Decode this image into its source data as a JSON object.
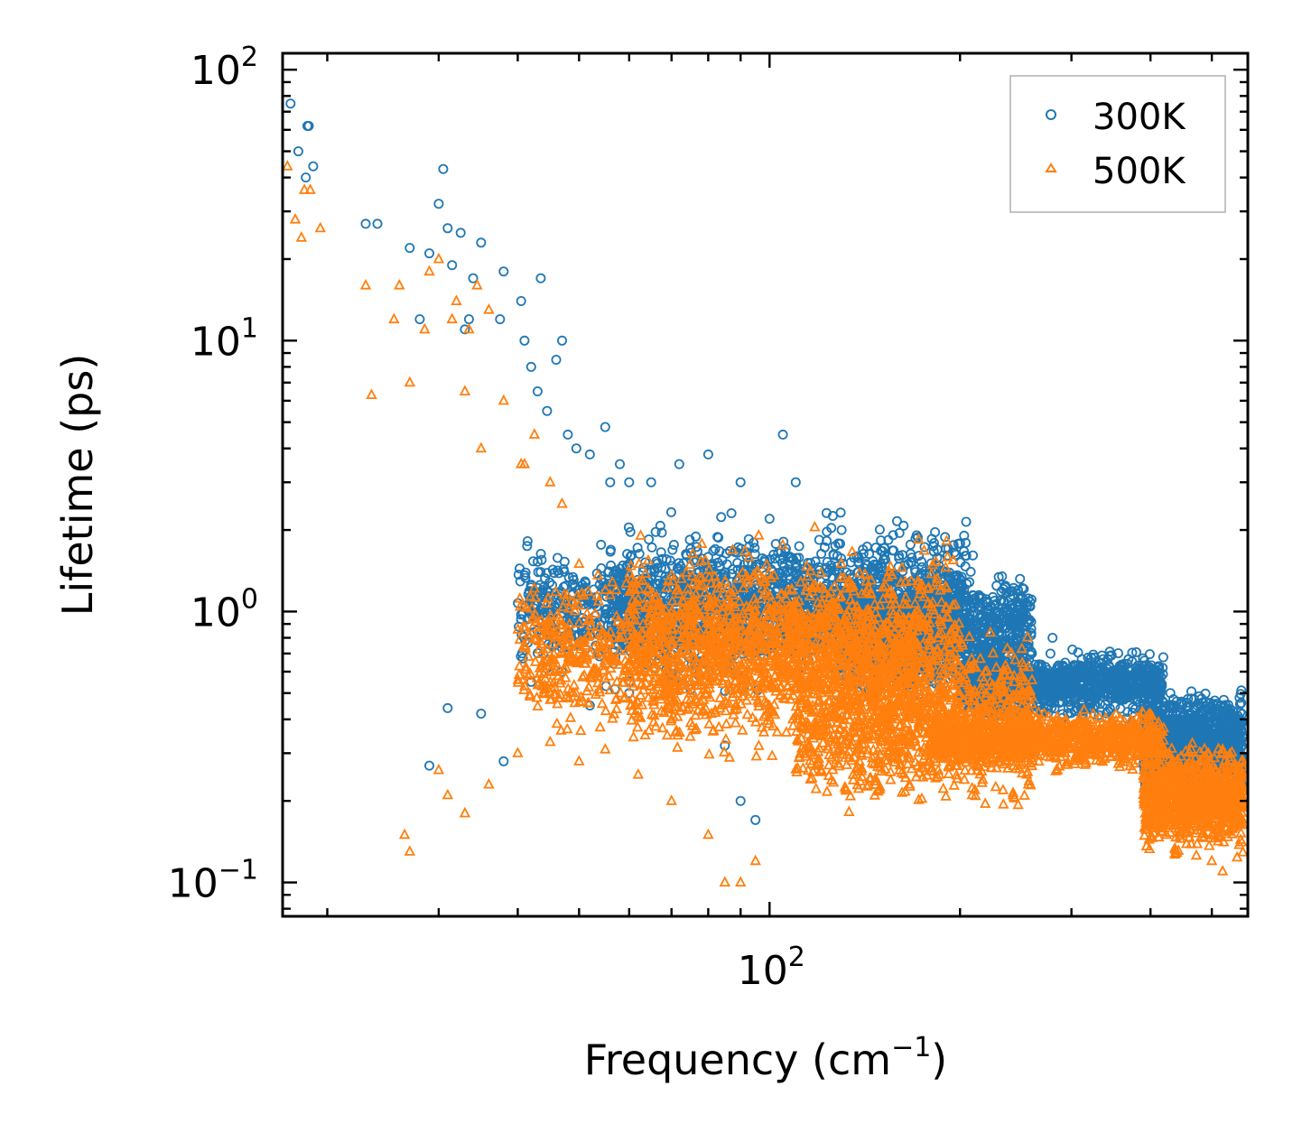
{
  "chart_data": {
    "type": "scatter",
    "title": "",
    "xlabel": "Frequency (cm",
    "xlabel_sup": "−1",
    "xlabel_end": ")",
    "ylabel": "Lifetime (ps)",
    "xscale": "log",
    "yscale": "log",
    "xlim": [
      17,
      570
    ],
    "ylim": [
      0.075,
      115
    ],
    "x_ticks": [
      {
        "value": 100,
        "base": "10",
        "exp": "2"
      }
    ],
    "y_ticks": [
      {
        "value": 0.1,
        "base": "10",
        "exp": "−1"
      },
      {
        "value": 1,
        "base": "10",
        "exp": "0"
      },
      {
        "value": 10,
        "base": "10",
        "exp": "1"
      },
      {
        "value": 100,
        "base": "10",
        "exp": "2"
      }
    ],
    "legend_position": "top-right",
    "series": [
      {
        "name": "300K",
        "marker": "circle",
        "color": "#1f77b4",
        "x": [
          17.5,
          18.0,
          18.5,
          18.6,
          18.7,
          19.0,
          23.0,
          24.0,
          27.0,
          28.0,
          29.0,
          30.0,
          30.5,
          31.0,
          31.5,
          32.5,
          33.0,
          33.5,
          34.0,
          35.0,
          37.5,
          38.0,
          40.5,
          41.0,
          42.0,
          43.0,
          43.5,
          44.5,
          46.0,
          47.0,
          48.0,
          49.5,
          52.0,
          55.0,
          56.0,
          58.0,
          60.0,
          65.0,
          72.0,
          80.0,
          90.0,
          100.0,
          105.0,
          110.0,
          130.0,
          150.0,
          170.0,
          190.0,
          220.0,
          280.0,
          350.0,
          430.0,
          500.0,
          29.0,
          31.0,
          35.0,
          38.0,
          42.0,
          47.0,
          52.0,
          60.0,
          70.0,
          85.0,
          90.0,
          95.0
        ],
        "y": [
          75.0,
          50.0,
          40.0,
          62.0,
          62.0,
          44.0,
          27.0,
          27.0,
          22.0,
          12.0,
          21.0,
          32.0,
          43.0,
          26.0,
          19.0,
          25.0,
          11.0,
          12.0,
          17.0,
          23.0,
          12.0,
          18.0,
          14.0,
          10.0,
          8.0,
          6.5,
          17.0,
          5.5,
          8.5,
          10.0,
          4.5,
          4.0,
          3.8,
          4.8,
          3.0,
          3.5,
          3.0,
          3.0,
          3.5,
          3.8,
          3.0,
          2.2,
          4.5,
          3.0,
          2.0,
          1.5,
          1.4,
          1.2,
          0.7,
          0.8,
          0.6,
          0.5,
          0.32,
          0.27,
          0.44,
          0.42,
          0.28,
          0.55,
          0.6,
          0.45,
          0.5,
          0.55,
          0.32,
          0.2,
          0.17
        ],
        "bands": [
          {
            "f": [
              40,
              200
            ],
            "y": [
              0.55,
              1.9
            ]
          },
          {
            "f": [
              55,
              210
            ],
            "y": [
              0.45,
              2.6
            ]
          },
          {
            "f": [
              130,
              260
            ],
            "y": [
              0.45,
              1.5
            ]
          },
          {
            "f": [
              200,
              420
            ],
            "y": [
              0.38,
              0.75
            ]
          },
          {
            "f": [
              390,
              560
            ],
            "y": [
              0.2,
              0.55
            ]
          }
        ]
      },
      {
        "name": "500K",
        "marker": "triangle",
        "color": "#ff7f0e",
        "x": [
          17.3,
          17.8,
          18.2,
          18.4,
          18.8,
          19.5,
          23.0,
          23.5,
          25.5,
          26.0,
          27.0,
          28.5,
          29.0,
          30.0,
          31.5,
          32.0,
          33.0,
          33.5,
          34.5,
          35.0,
          36.0,
          38.0,
          40.5,
          41.0,
          42.5,
          45.0,
          47.0,
          50.0,
          55.0,
          60.0,
          26.5,
          27.0,
          30.0,
          31.0,
          33.0,
          36.0,
          40.0,
          45.0,
          50.0,
          55.0,
          62.0,
          70.0,
          80.0,
          85.0,
          90.0,
          95.0,
          500.0,
          520.0
        ],
        "y": [
          44.0,
          28.0,
          24.0,
          36.0,
          36.0,
          26.0,
          16.0,
          6.3,
          12.0,
          16.0,
          7.0,
          11.0,
          18.0,
          20.0,
          12.0,
          14.0,
          6.5,
          11.0,
          16.0,
          4.0,
          13.0,
          6.0,
          3.5,
          3.5,
          4.5,
          3.0,
          2.5,
          1.5,
          1.2,
          1.0,
          0.15,
          0.13,
          0.26,
          0.21,
          0.18,
          0.23,
          0.3,
          0.33,
          0.28,
          0.31,
          0.25,
          0.2,
          0.15,
          0.1,
          0.1,
          0.12,
          0.12,
          0.11
        ],
        "bands": [
          {
            "f": [
              40,
              170
            ],
            "y": [
              0.3,
              1.6
            ]
          },
          {
            "f": [
              60,
              200
            ],
            "y": [
              0.25,
              2.2
            ]
          },
          {
            "f": [
              110,
              260
            ],
            "y": [
              0.16,
              1.0
            ]
          },
          {
            "f": [
              180,
              420
            ],
            "y": [
              0.25,
              0.45
            ]
          },
          {
            "f": [
              390,
              560
            ],
            "y": [
              0.12,
              0.35
            ]
          }
        ]
      }
    ]
  }
}
